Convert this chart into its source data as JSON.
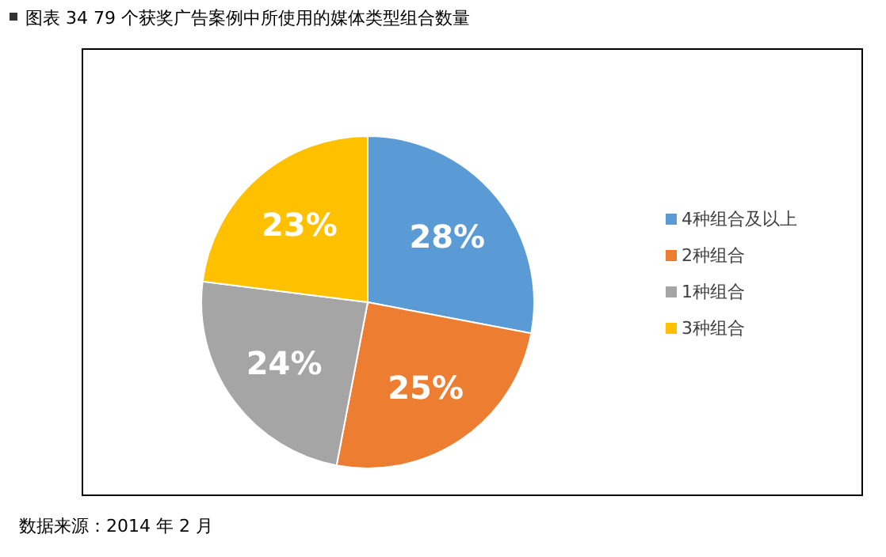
{
  "chart_data": {
    "type": "pie",
    "title": "图表 34 79 个获奖广告案例中所使用的媒体类型组合数量",
    "categories": [
      "4种组合及以上",
      "2种组合",
      "1种组合",
      "3种组合"
    ],
    "values": [
      28,
      25,
      24,
      23
    ],
    "colors": [
      "#5b9bd5",
      "#ed7d31",
      "#a5a5a5",
      "#ffc000"
    ],
    "value_labels": [
      "28%",
      "25%",
      "24%",
      "23%"
    ],
    "legend": "right",
    "annotations": [
      "数据来源：2014 年 2 月"
    ]
  }
}
